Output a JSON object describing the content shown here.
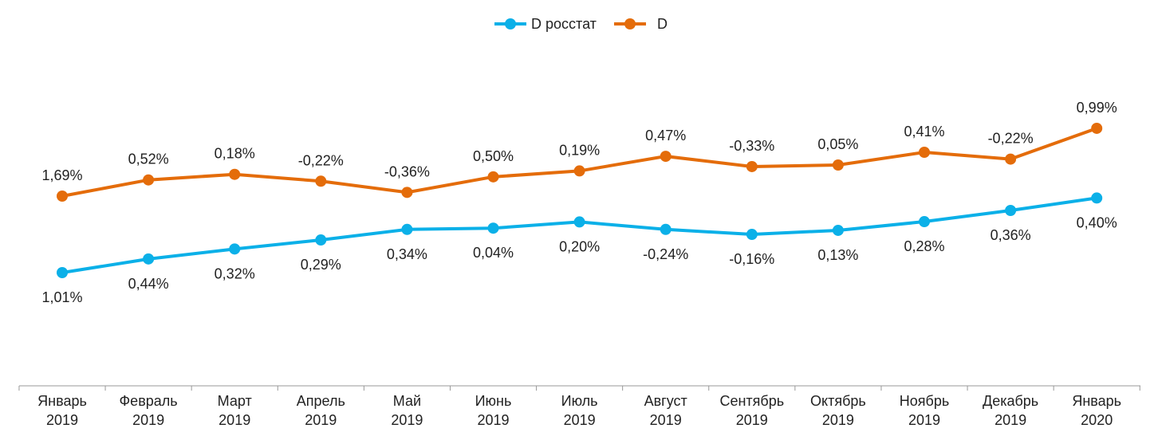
{
  "chart_data": {
    "type": "line",
    "title": "",
    "xlabel": "",
    "ylabel": "",
    "grid": false,
    "legend_position": "top",
    "categories": [
      [
        "Январь",
        "2019"
      ],
      [
        "Февраль",
        "2019"
      ],
      [
        "Март",
        "2019"
      ],
      [
        "Апрель",
        "2019"
      ],
      [
        "Май",
        "2019"
      ],
      [
        "Июнь",
        "2019"
      ],
      [
        "Июль",
        "2019"
      ],
      [
        "Август",
        "2019"
      ],
      [
        "Сентябрь",
        "2019"
      ],
      [
        "Октябрь",
        "2019"
      ],
      [
        "Ноябрь",
        "2019"
      ],
      [
        "Декабрь",
        "2019"
      ],
      [
        "Январь",
        "2020"
      ]
    ],
    "series": [
      {
        "name": "D росстат",
        "color": "#0BB0E8",
        "labels_position": "below",
        "values": [
          1.01,
          0.44,
          0.32,
          0.29,
          0.34,
          0.04,
          0.2,
          -0.24,
          -0.16,
          0.13,
          0.28,
          0.36,
          0.4
        ],
        "labels": [
          "1,01%",
          "0,44%",
          "0,32%",
          "0,29%",
          "0,34%",
          "0,04%",
          "0,20%",
          "-0,24%",
          "-0,16%",
          "0,13%",
          "0,28%",
          "0,36%",
          "0,40%"
        ]
      },
      {
        "name": "D",
        "color": "#E46C0A",
        "labels_position": "above",
        "values": [
          1.69,
          0.52,
          0.18,
          -0.22,
          -0.36,
          0.5,
          0.19,
          0.47,
          -0.33,
          0.05,
          0.41,
          -0.22,
          0.99
        ],
        "labels": [
          "1,69%",
          "0,52%",
          "0,18%",
          "-0,22%",
          "-0,36%",
          "0,50%",
          "0,19%",
          "0,47%",
          "-0,33%",
          "0,05%",
          "0,41%",
          "-0,22%",
          "0,99%"
        ]
      }
    ]
  }
}
